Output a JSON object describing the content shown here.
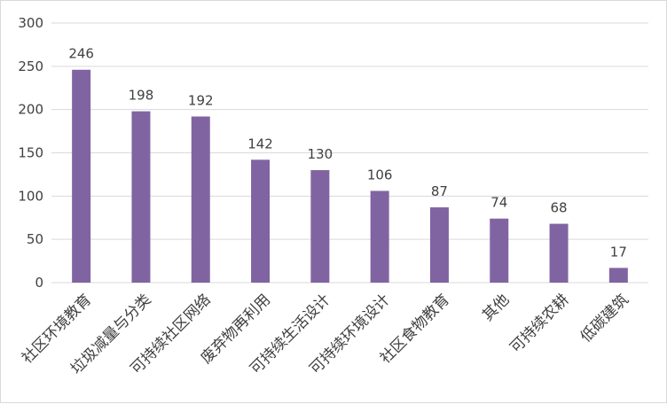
{
  "chart_data": {
    "type": "bar",
    "categories": [
      "社区环境教育",
      "垃圾减量与分类",
      "可持续社区网络",
      "废弃物再利用",
      "可持续生活设计",
      "可持续环境设计",
      "社区食物教育",
      "其他",
      "可持续农耕",
      "低碳建筑"
    ],
    "values": [
      246,
      198,
      192,
      142,
      130,
      106,
      87,
      74,
      68,
      17
    ],
    "title": "",
    "xlabel": "",
    "ylabel": "",
    "ylim": [
      0,
      300
    ],
    "yticks": [
      0,
      50,
      100,
      150,
      200,
      250,
      300
    ],
    "grid": true,
    "legend": "none",
    "bar_color": "#8064a2",
    "grid_color": "#d9d9d9"
  }
}
